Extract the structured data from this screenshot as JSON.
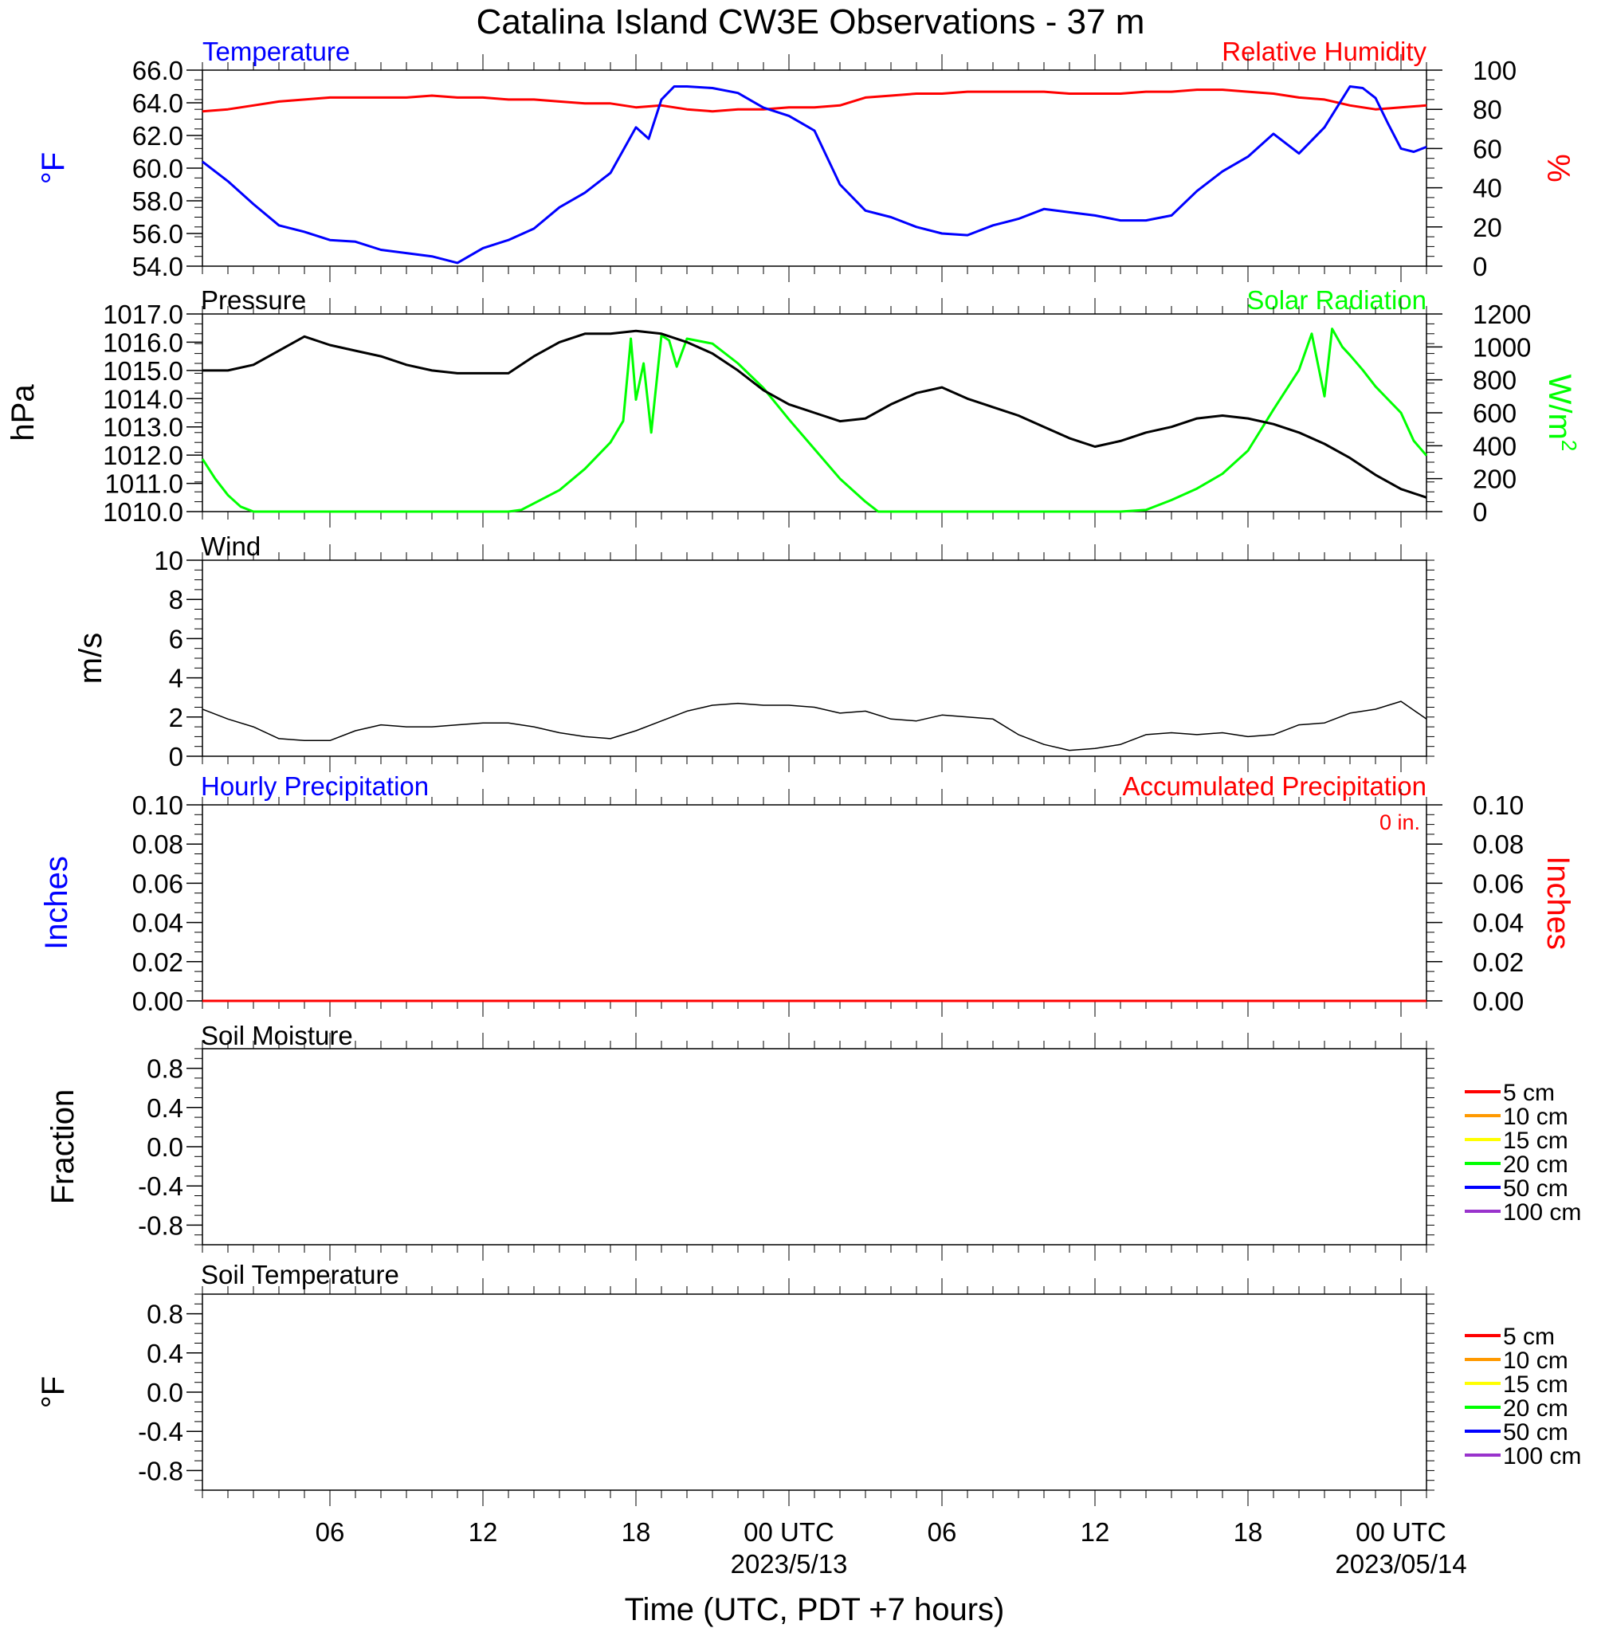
{
  "title": "Catalina Island CW3E Observations - 37 m",
  "x_axis": {
    "label": "Time (UTC, PDT +7 hours)",
    "ticks": [
      "06",
      "12",
      "18",
      "00 UTC",
      "06",
      "12",
      "18",
      "00 UTC"
    ],
    "tick_hours": [
      6,
      12,
      18,
      24,
      30,
      36,
      42,
      48
    ],
    "dates": [
      "2023/5/13",
      "2023/05/14"
    ],
    "date_hours": [
      24,
      48
    ],
    "range_hours": [
      1,
      49
    ]
  },
  "colors": {
    "temperature": "#0000ff",
    "humidity": "#ff0000",
    "pressure": "#000000",
    "solar": "#00ff00",
    "wind": "#000000",
    "barbs": "#ff0000",
    "precip_hourly": "#0000ff",
    "precip_accum": "#ff0000",
    "soil_levels": [
      "#ff0000",
      "#ff9900",
      "#ffff00",
      "#00ff00",
      "#0000ff",
      "#9933cc"
    ]
  },
  "panels": {
    "temp_rh": {
      "left_title": "Temperature",
      "right_title": "Relative Humidity",
      "left_unit": "°F",
      "right_unit": "%",
      "left_ticks": [
        "54.0",
        "56.0",
        "58.0",
        "60.0",
        "62.0",
        "64.0",
        "66.0"
      ],
      "left_range": [
        54,
        66
      ],
      "right_ticks": [
        "0",
        "20",
        "40",
        "60",
        "80",
        "100"
      ],
      "right_range": [
        0,
        100
      ]
    },
    "pressure_solar": {
      "left_title": "Pressure",
      "right_title": "Solar Radiation",
      "left_unit": "hPa",
      "right_unit": "W/m",
      "right_unit_sup": "2",
      "left_ticks": [
        "1010.0",
        "1011.0",
        "1012.0",
        "1013.0",
        "1014.0",
        "1015.0",
        "1016.0",
        "1017.0"
      ],
      "left_range": [
        1010,
        1017
      ],
      "right_ticks": [
        "0",
        "200",
        "400",
        "600",
        "800",
        "1000",
        "1200"
      ],
      "right_range": [
        0,
        1200
      ]
    },
    "wind": {
      "left_title": "Wind",
      "left_unit": "m/s",
      "left_ticks": [
        "0",
        "2",
        "4",
        "6",
        "8",
        "10"
      ],
      "left_range": [
        0,
        10
      ]
    },
    "precip": {
      "left_title": "Hourly Precipitation",
      "right_title": "Accumulated Precipitation",
      "total_note": "0 in.",
      "left_unit": "Inches",
      "right_unit": "Inches",
      "left_ticks": [
        "0.00",
        "0.02",
        "0.04",
        "0.06",
        "0.08",
        "0.10"
      ],
      "left_range": [
        0,
        0.1
      ],
      "right_ticks": [
        "0.00",
        "0.02",
        "0.04",
        "0.06",
        "0.08",
        "0.10"
      ],
      "right_range": [
        0,
        0.1
      ]
    },
    "soil_moisture": {
      "left_title": "Soil Moisture",
      "left_unit": "Fraction",
      "left_ticks": [
        "-0.8",
        "-0.4",
        "0.0",
        "0.4",
        "0.8"
      ],
      "left_range": [
        -1,
        1
      ],
      "legend": [
        "5 cm",
        "10 cm",
        "15 cm",
        "20 cm",
        "50 cm",
        "100 cm"
      ]
    },
    "soil_temp": {
      "left_title": "Soil Temperature",
      "left_unit": "°F",
      "left_ticks": [
        "-0.8",
        "-0.4",
        "0.0",
        "0.4",
        "0.8"
      ],
      "left_range": [
        -1,
        1
      ],
      "legend": [
        "5 cm",
        "10 cm",
        "15 cm",
        "20 cm",
        "50 cm",
        "100 cm"
      ]
    }
  },
  "chart_data": [
    {
      "type": "line",
      "panel": "temp_rh",
      "x_units": "hours from 2023-05-12 00 UTC",
      "series": [
        {
          "name": "Temperature",
          "axis": "left",
          "x": [
            1,
            2,
            3,
            4,
            5,
            6,
            7,
            8,
            9,
            10,
            11,
            12,
            13,
            14,
            15,
            16,
            17,
            18,
            18.5,
            19,
            19.5,
            20,
            21,
            22,
            23,
            24,
            25,
            26,
            27,
            28,
            29,
            30,
            31,
            32,
            33,
            34,
            35,
            36,
            37,
            38,
            39,
            40,
            41,
            42,
            43,
            44,
            45,
            46,
            46.5,
            47,
            47.5,
            48,
            48.5,
            49
          ],
          "y": [
            60.4,
            59.2,
            57.8,
            56.5,
            56.1,
            55.6,
            55.5,
            55.0,
            54.8,
            54.6,
            54.2,
            55.1,
            55.6,
            56.3,
            57.6,
            58.5,
            59.7,
            62.5,
            61.8,
            64.2,
            65.0,
            65.0,
            64.9,
            64.6,
            63.7,
            63.2,
            62.3,
            59.0,
            57.4,
            57.0,
            56.4,
            56.0,
            55.9,
            56.5,
            56.9,
            57.5,
            57.3,
            57.1,
            56.8,
            56.8,
            57.1,
            58.6,
            59.8,
            60.7,
            62.1,
            60.9,
            62.5,
            65.0,
            64.9,
            64.3,
            62.7,
            61.2,
            61.0,
            61.3
          ]
        },
        {
          "name": "Relative Humidity",
          "axis": "right",
          "x": [
            1,
            2,
            3,
            4,
            5,
            6,
            7,
            8,
            9,
            10,
            11,
            12,
            13,
            14,
            15,
            16,
            17,
            18,
            19,
            20,
            21,
            22,
            23,
            24,
            25,
            26,
            27,
            28,
            29,
            30,
            31,
            32,
            33,
            34,
            35,
            36,
            37,
            38,
            39,
            40,
            41,
            42,
            43,
            44,
            45,
            46,
            47,
            48,
            49
          ],
          "y": [
            79,
            80,
            82,
            84,
            85,
            86,
            86,
            86,
            86,
            87,
            86,
            86,
            85,
            85,
            84,
            83,
            83,
            81,
            82,
            80,
            79,
            80,
            80,
            81,
            81,
            82,
            86,
            87,
            88,
            88,
            89,
            89,
            89,
            89,
            88,
            88,
            88,
            89,
            89,
            90,
            90,
            89,
            88,
            86,
            85,
            82,
            80,
            81,
            82
          ]
        }
      ]
    },
    {
      "type": "line",
      "panel": "pressure_solar",
      "x_units": "hours from 2023-05-12 00 UTC",
      "series": [
        {
          "name": "Pressure",
          "axis": "left",
          "x": [
            1,
            2,
            3,
            4,
            5,
            6,
            7,
            8,
            9,
            10,
            11,
            12,
            13,
            14,
            15,
            16,
            17,
            18,
            19,
            20,
            21,
            22,
            23,
            24,
            25,
            26,
            27,
            28,
            29,
            30,
            31,
            32,
            33,
            34,
            35,
            36,
            37,
            38,
            39,
            40,
            41,
            42,
            43,
            44,
            45,
            46,
            47,
            48,
            49
          ],
          "y": [
            1015.0,
            1015.0,
            1015.2,
            1015.7,
            1016.2,
            1015.9,
            1015.7,
            1015.5,
            1015.2,
            1015.0,
            1014.9,
            1014.9,
            1014.9,
            1015.5,
            1016.0,
            1016.3,
            1016.3,
            1016.4,
            1016.3,
            1016.0,
            1015.6,
            1015.0,
            1014.3,
            1013.8,
            1013.5,
            1013.2,
            1013.3,
            1013.8,
            1014.2,
            1014.4,
            1014.0,
            1013.7,
            1013.4,
            1013.0,
            1012.6,
            1012.3,
            1012.5,
            1012.8,
            1013.0,
            1013.3,
            1013.4,
            1013.3,
            1013.1,
            1012.8,
            1012.4,
            1011.9,
            1011.3,
            1010.8,
            1010.5
          ]
        },
        {
          "name": "Solar Radiation",
          "axis": "right",
          "x": [
            1,
            1.5,
            2,
            2.5,
            3,
            4,
            5,
            6,
            7,
            8,
            9,
            10,
            11,
            12,
            13,
            13.5,
            14,
            15,
            16,
            17,
            17.5,
            17.8,
            18,
            18.3,
            18.6,
            19,
            19.3,
            19.6,
            20,
            21,
            22,
            23,
            24,
            25,
            26,
            27,
            27.5,
            28,
            29,
            30,
            31,
            32,
            33,
            34,
            35,
            36,
            37,
            38,
            39,
            40,
            41,
            42,
            43,
            44,
            44.5,
            45,
            45.3,
            45.7,
            46,
            46.5,
            47,
            47.5,
            48,
            48.5,
            49
          ],
          "y": [
            320,
            200,
            100,
            30,
            0,
            0,
            0,
            0,
            0,
            0,
            0,
            0,
            0,
            0,
            0,
            10,
            50,
            130,
            260,
            420,
            550,
            1050,
            680,
            900,
            480,
            1070,
            1040,
            880,
            1050,
            1020,
            900,
            750,
            560,
            380,
            200,
            60,
            0,
            0,
            0,
            0,
            0,
            0,
            0,
            0,
            0,
            0,
            0,
            10,
            70,
            140,
            230,
            370,
            620,
            860,
            1080,
            700,
            1110,
            1000,
            950,
            860,
            760,
            680,
            600,
            430,
            340
          ]
        }
      ]
    },
    {
      "type": "line",
      "panel": "wind",
      "x_units": "hours from 2023-05-12 00 UTC",
      "series": [
        {
          "name": "Wind",
          "axis": "left",
          "x": [
            1,
            2,
            3,
            4,
            5,
            6,
            7,
            8,
            9,
            10,
            11,
            12,
            13,
            14,
            15,
            16,
            17,
            18,
            19,
            20,
            21,
            22,
            23,
            24,
            25,
            26,
            27,
            28,
            29,
            30,
            31,
            32,
            33,
            34,
            35,
            36,
            37,
            38,
            39,
            40,
            41,
            42,
            43,
            44,
            45,
            46,
            47,
            48,
            49
          ],
          "y": [
            2.4,
            1.9,
            1.5,
            0.9,
            0.8,
            0.8,
            1.3,
            1.6,
            1.5,
            1.5,
            1.6,
            1.7,
            1.7,
            1.5,
            1.2,
            1.0,
            0.9,
            1.3,
            1.8,
            2.3,
            2.6,
            2.7,
            2.6,
            2.6,
            2.5,
            2.2,
            2.3,
            1.9,
            1.8,
            2.1,
            2.0,
            1.9,
            1.1,
            0.6,
            0.3,
            0.4,
            0.6,
            1.1,
            1.2,
            1.1,
            1.2,
            1.0,
            1.1,
            1.6,
            1.7,
            2.2,
            2.4,
            2.8,
            1.9
          ]
        }
      ]
    },
    {
      "type": "line",
      "panel": "precip",
      "x_units": "hours from 2023-05-12 00 UTC",
      "series": [
        {
          "name": "Hourly Precipitation",
          "axis": "left",
          "x": [
            1,
            49
          ],
          "y": [
            0,
            0
          ]
        },
        {
          "name": "Accumulated Precipitation",
          "axis": "right",
          "x": [
            1,
            49
          ],
          "y": [
            0,
            0
          ]
        }
      ]
    }
  ]
}
